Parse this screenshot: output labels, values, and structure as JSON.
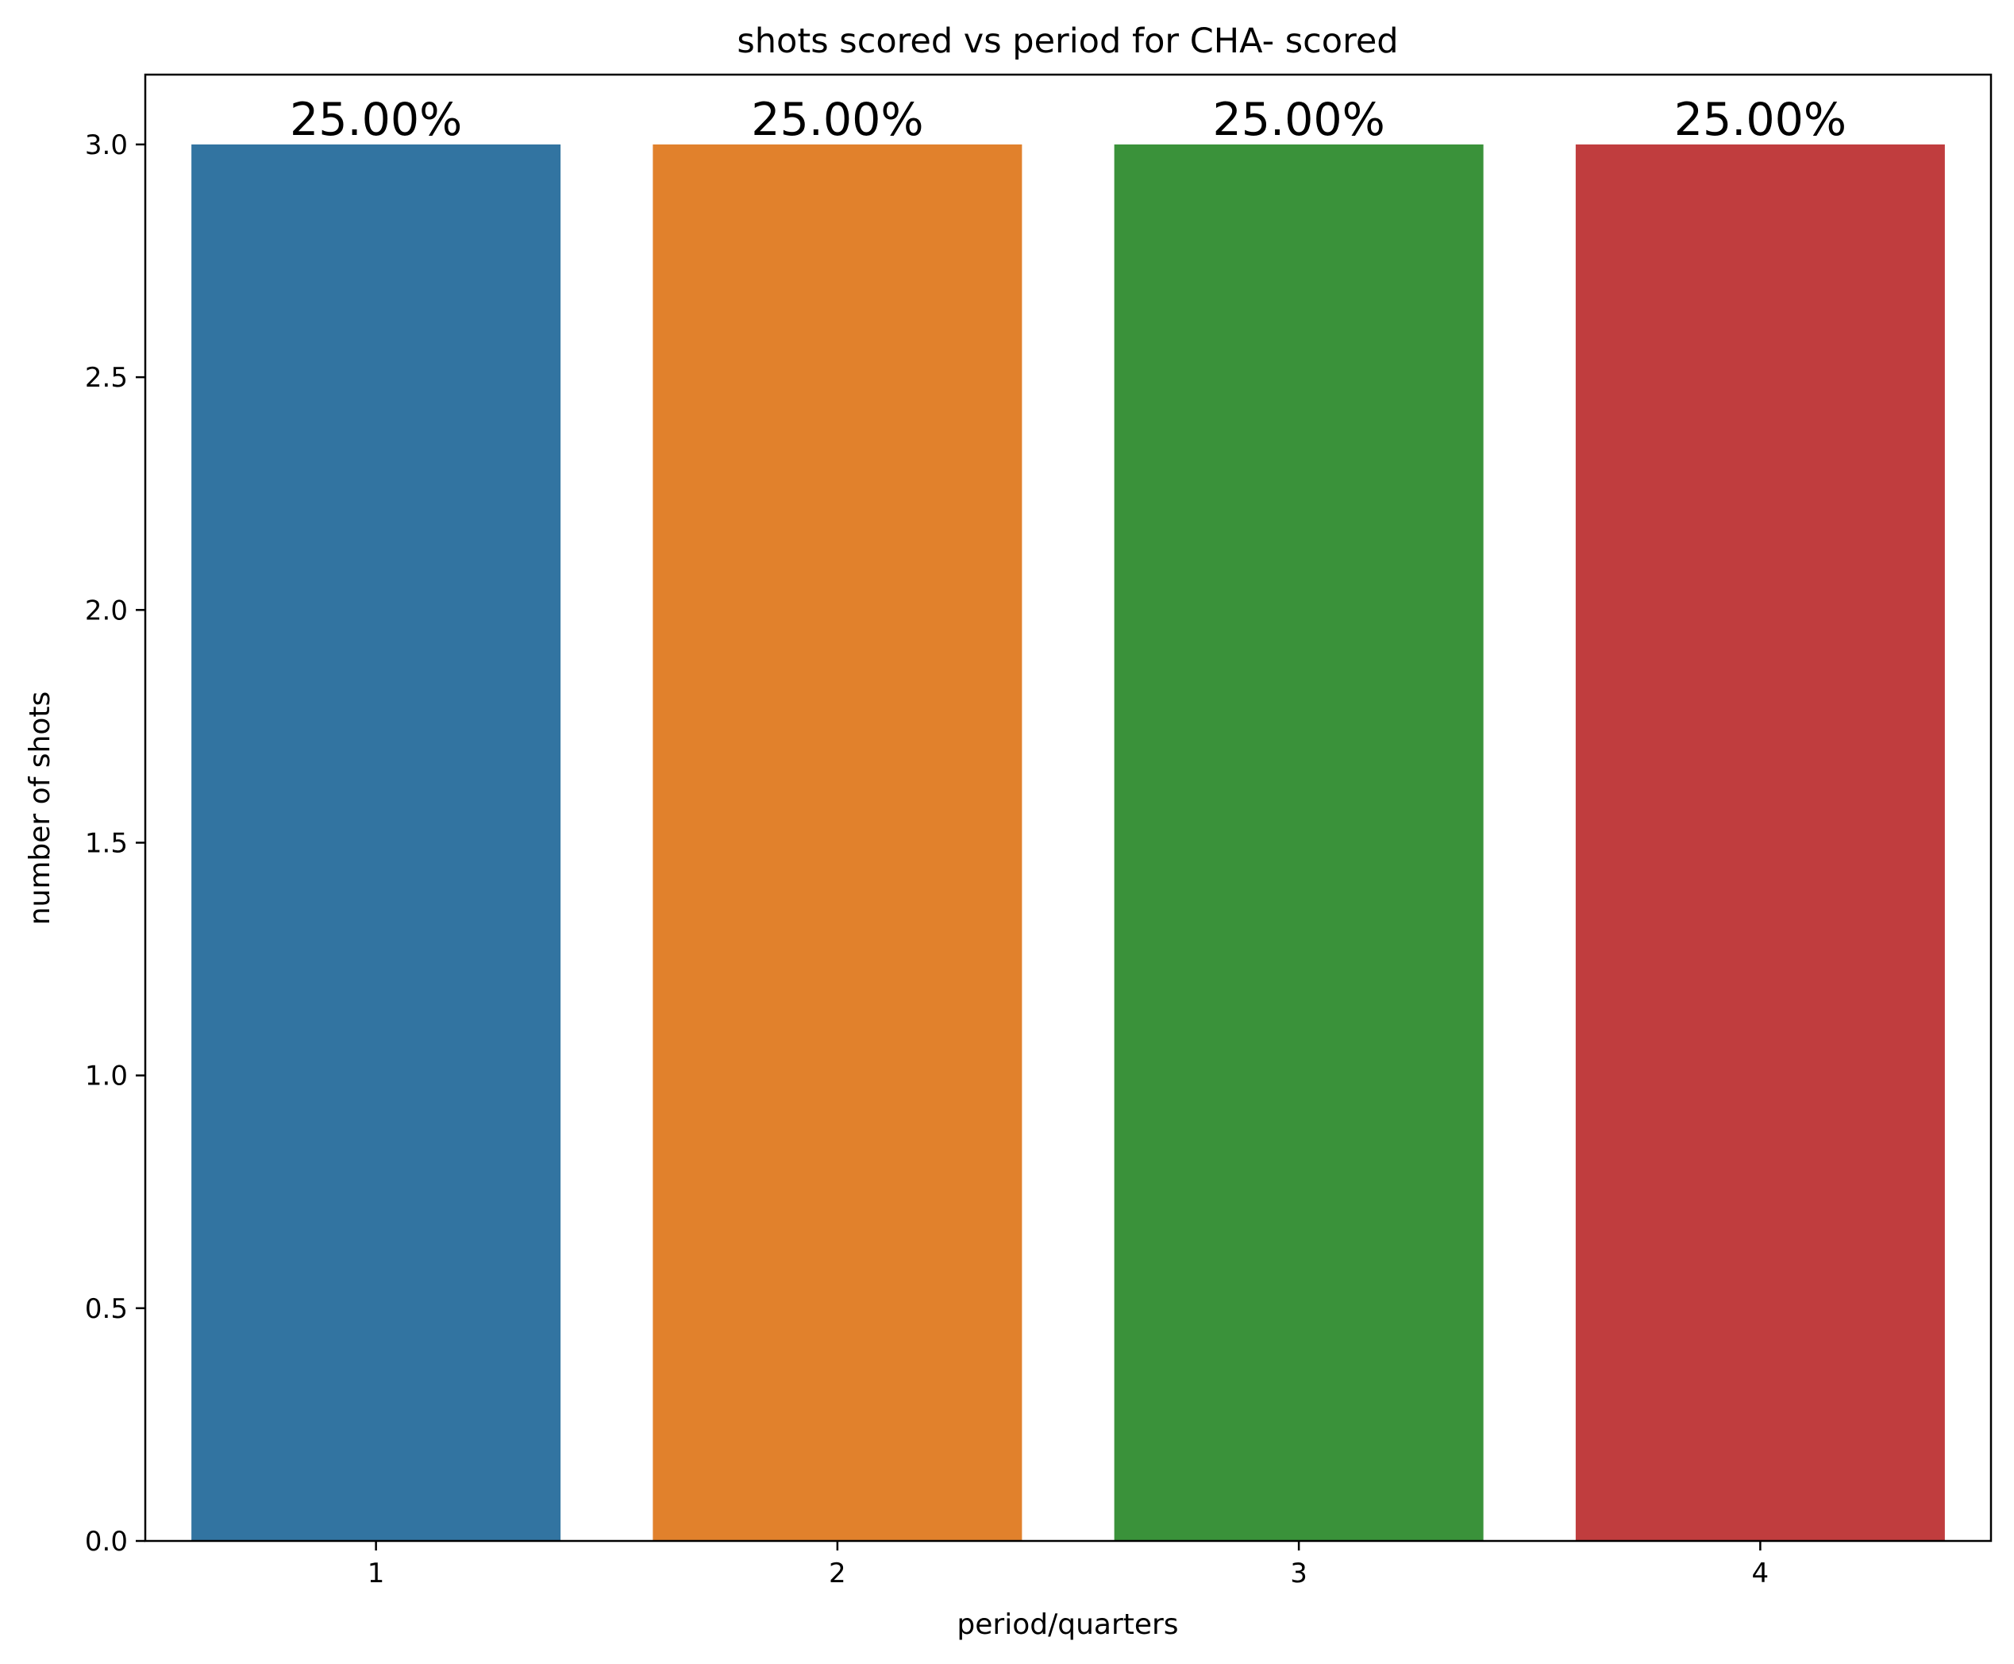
{
  "chart_data": {
    "type": "bar",
    "title": "shots scored vs period for CHA- scored",
    "xlabel": "period/quarters",
    "ylabel": "number of shots",
    "categories": [
      "1",
      "2",
      "3",
      "4"
    ],
    "values": [
      3,
      3,
      3,
      3
    ],
    "data_labels": [
      "25.00%",
      "25.00%",
      "25.00%",
      "25.00%"
    ],
    "colors": [
      "#3274a1",
      "#e1812c",
      "#3a923a",
      "#c03d3e"
    ],
    "ylim": [
      0,
      3.15
    ],
    "yticks": [
      0.0,
      0.5,
      1.0,
      1.5,
      2.0,
      2.5,
      3.0
    ],
    "ytick_labels": [
      "0.0",
      "0.5",
      "1.0",
      "1.5",
      "2.0",
      "2.5",
      "3.0"
    ],
    "grid": false,
    "legend": "none"
  }
}
